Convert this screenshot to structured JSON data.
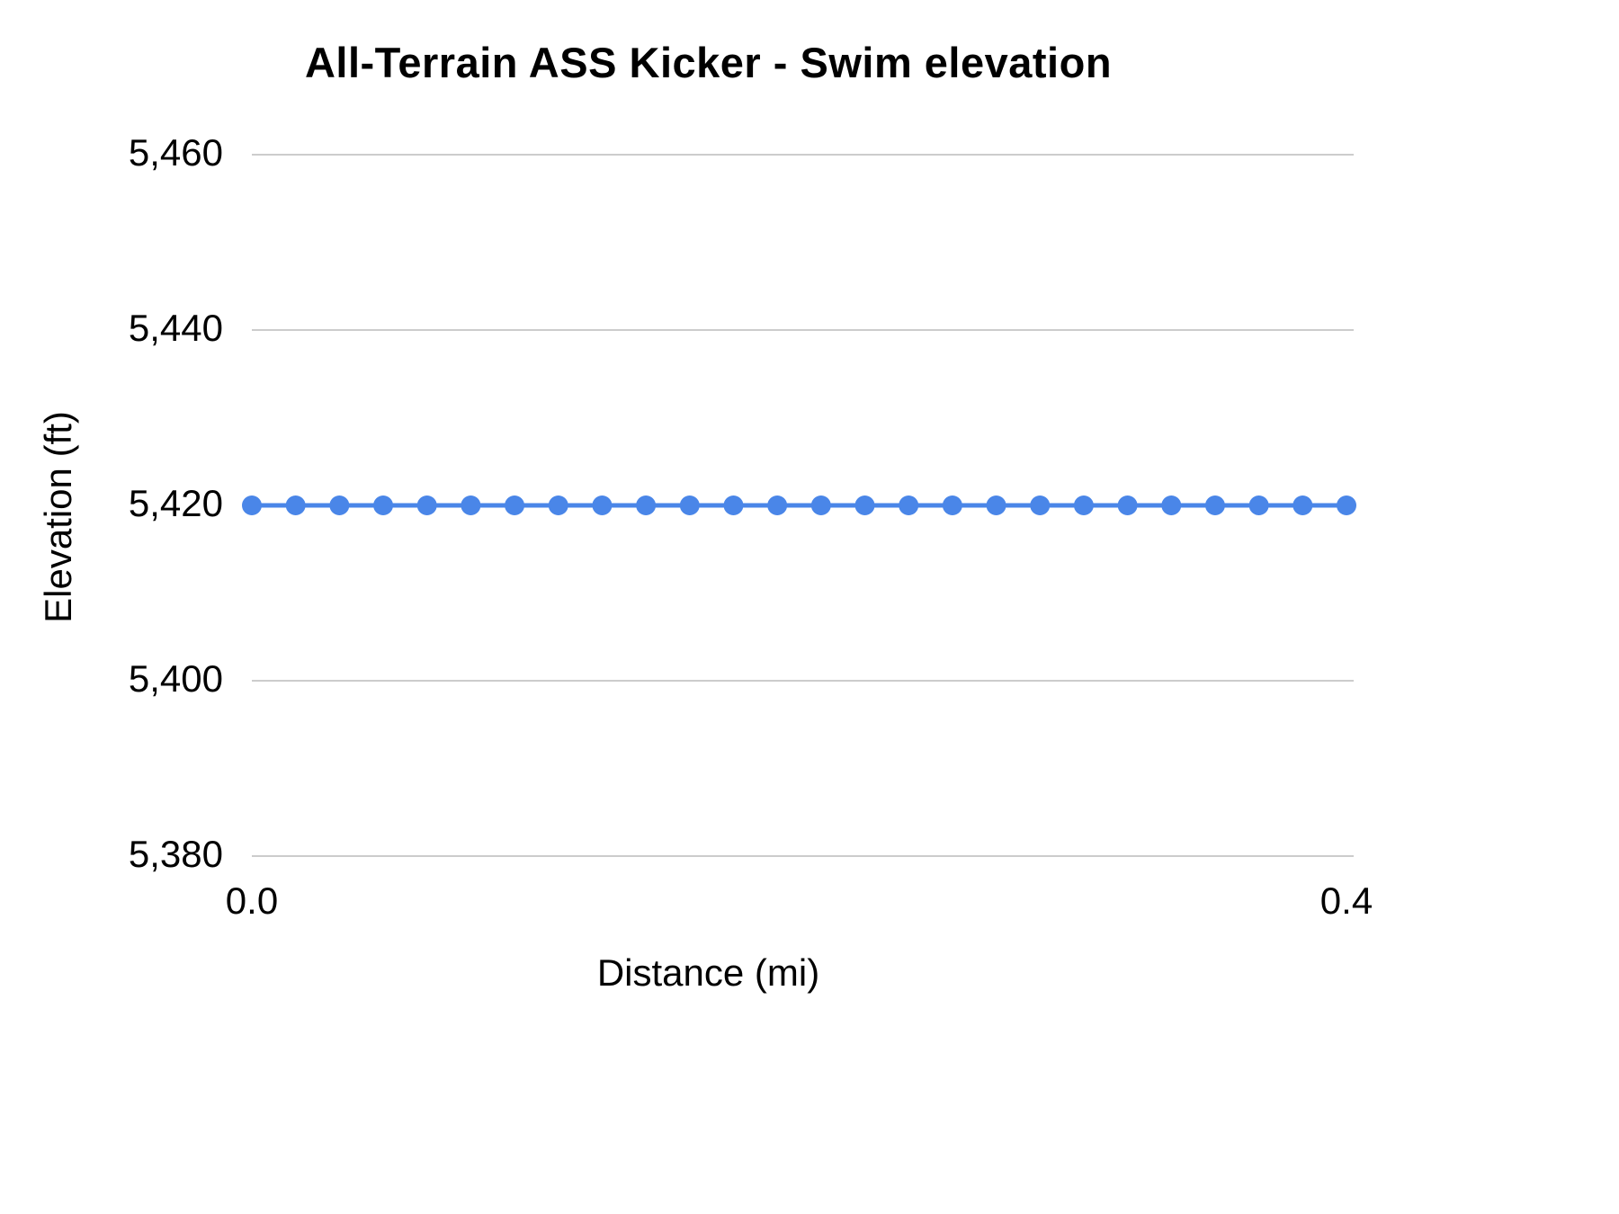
{
  "chart": {
    "title": "All-Terrain ASS Kicker - Swim elevation"
  },
  "chart_data": {
    "type": "line",
    "title": "All-Terrain ASS Kicker - Swim elevation",
    "xlabel": "Distance (mi)",
    "ylabel": "Elevation (ft)",
    "x": [
      0,
      0.016,
      0.032,
      0.048,
      0.064,
      0.08,
      0.096,
      0.112,
      0.128,
      0.144,
      0.16,
      0.176,
      0.192,
      0.208,
      0.224,
      0.24,
      0.256,
      0.272,
      0.288,
      0.304,
      0.32,
      0.336,
      0.352,
      0.368,
      0.384,
      0.4
    ],
    "y": [
      5420,
      5420,
      5420,
      5420,
      5420,
      5420,
      5420,
      5420,
      5420,
      5420,
      5420,
      5420,
      5420,
      5420,
      5420,
      5420,
      5420,
      5420,
      5420,
      5420,
      5420,
      5420,
      5420,
      5420,
      5420,
      5420
    ],
    "xlim": [
      0,
      0.4
    ],
    "ylim": [
      5380,
      5460
    ],
    "yticks": [
      5380,
      5400,
      5420,
      5440,
      5460
    ],
    "ytick_labels": [
      "5,380",
      "5,400",
      "5,420",
      "5,440",
      "5,460"
    ],
    "xticks": [
      0,
      0.4
    ],
    "xtick_labels": [
      "0.0",
      "0.4"
    ],
    "grid": "horizontal",
    "grid_color": "#cccccc",
    "line_color": "#4a86e8",
    "marker": "circle",
    "marker_radius": 11,
    "line_width": 5
  }
}
